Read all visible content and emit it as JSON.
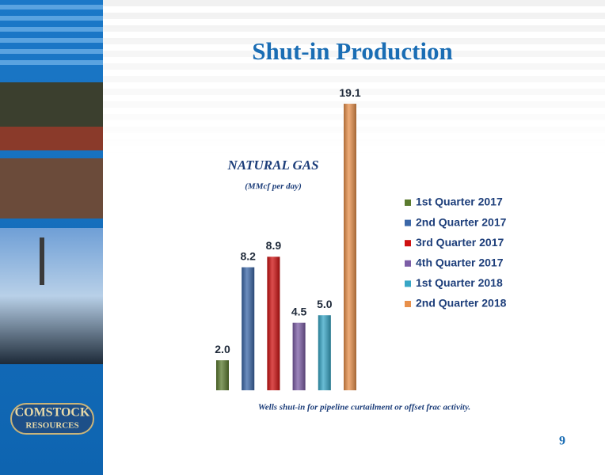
{
  "title": "Shut-in Production",
  "page_number": 9,
  "logo": {
    "line1": "COMSTOCK",
    "line2": "RESOURCES"
  },
  "chart_data": {
    "type": "bar",
    "subtitle": "NATURAL GAS",
    "y_label": "(MMcf per day)",
    "note": "Wells shut-in for pipeline curtailment or offset frac activity.",
    "categories": [
      "1st Quarter 2017",
      "2nd Quarter 2017",
      "3rd Quarter 2017",
      "4th Quarter 2017",
      "1st Quarter 2018",
      "2nd Quarter 2018"
    ],
    "values": [
      2.0,
      8.2,
      8.9,
      4.5,
      5.0,
      19.1
    ],
    "value_labels": [
      "2.0",
      "8.2",
      "8.9",
      "4.5",
      "5.0",
      "19.1"
    ],
    "colors": [
      "#5b7b2f",
      "#3b67a8",
      "#cf1111",
      "#7c5da6",
      "#37a6c6",
      "#e8904b"
    ]
  }
}
